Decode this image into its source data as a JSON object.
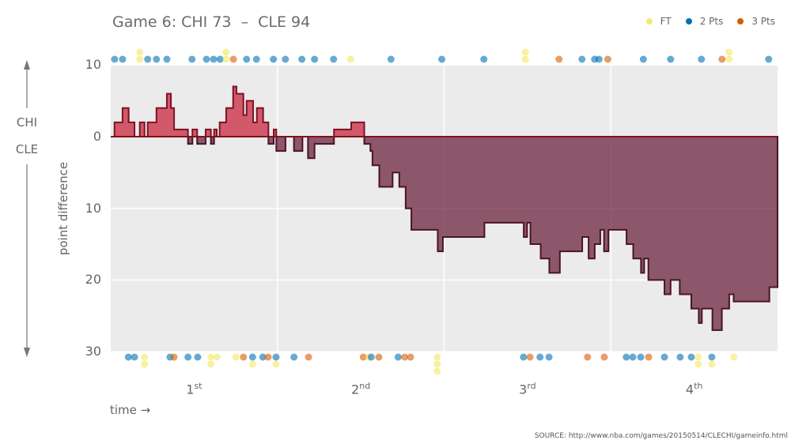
{
  "title": "Game 6: CHI 73  –  CLE 94",
  "legend": [
    {
      "label": "FT",
      "color": "#f0e442"
    },
    {
      "label": "2 Pts",
      "color": "#0072b2"
    },
    {
      "label": "3 Pts",
      "color": "#d55e00"
    }
  ],
  "side_labels": {
    "top": "CHI",
    "bottom": "CLE"
  },
  "source": "SOURCE: http://www.nba.com/games/20150514/CLECHI/gameinfo.html",
  "chart_data": {
    "type": "area",
    "title": "Game 6: CHI 73  –  CLE 94",
    "xlabel": "time →",
    "ylabel": "point difference",
    "xlim": [
      0,
      48
    ],
    "ylim": [
      -30,
      10
    ],
    "y_ticks": [
      {
        "value": 10,
        "label": "10"
      },
      {
        "value": 0,
        "label": "0"
      },
      {
        "value": -10,
        "label": "10"
      },
      {
        "value": -20,
        "label": "20"
      },
      {
        "value": -30,
        "label": "30"
      }
    ],
    "quarters": [
      {
        "num": "1",
        "sup": "st",
        "mid": 6
      },
      {
        "num": "2",
        "sup": "nd",
        "mid": 18
      },
      {
        "num": "3",
        "sup": "rd",
        "mid": 30
      },
      {
        "num": "4",
        "sup": "th",
        "mid": 42
      }
    ],
    "quarter_lines": [
      12,
      24,
      36
    ],
    "grid": true,
    "legend_position": "top-right",
    "colors": {
      "chi_fill": "#c8283f",
      "chi_stroke": "#7e1222",
      "cle_fill": "#6e2540",
      "cle_stroke": "#4a1424",
      "background": "#ebebeb"
    },
    "margin_steps": [
      [
        0,
        0
      ],
      [
        0.27,
        2
      ],
      [
        0.85,
        4
      ],
      [
        1.29,
        2
      ],
      [
        1.71,
        0
      ],
      [
        2.09,
        2
      ],
      [
        2.43,
        0
      ],
      [
        2.66,
        2
      ],
      [
        3.29,
        4
      ],
      [
        4.04,
        6
      ],
      [
        4.33,
        4
      ],
      [
        4.56,
        1
      ],
      [
        5.56,
        -1
      ],
      [
        5.88,
        1
      ],
      [
        6.22,
        -1
      ],
      [
        6.83,
        1
      ],
      [
        7.21,
        -1
      ],
      [
        7.44,
        1
      ],
      [
        7.63,
        0
      ],
      [
        7.84,
        2
      ],
      [
        8.31,
        4
      ],
      [
        8.81,
        7
      ],
      [
        9.05,
        6
      ],
      [
        9.55,
        3
      ],
      [
        9.78,
        5
      ],
      [
        10.25,
        2
      ],
      [
        10.52,
        4
      ],
      [
        10.97,
        2
      ],
      [
        11.35,
        -1
      ],
      [
        11.73,
        1
      ],
      [
        11.92,
        -2
      ],
      [
        12.58,
        0
      ],
      [
        13.19,
        -2
      ],
      [
        13.8,
        0
      ],
      [
        14.2,
        -3
      ],
      [
        14.67,
        -1
      ],
      [
        16.07,
        1
      ],
      [
        17.31,
        2
      ],
      [
        18.25,
        -1
      ],
      [
        18.69,
        -2
      ],
      [
        18.84,
        -4
      ],
      [
        19.33,
        -7
      ],
      [
        20.29,
        -5
      ],
      [
        20.77,
        -7
      ],
      [
        21.23,
        -10
      ],
      [
        21.64,
        -13
      ],
      [
        23.54,
        -16
      ],
      [
        23.91,
        -14
      ],
      [
        26.9,
        -12
      ],
      [
        29.73,
        -14
      ],
      [
        29.97,
        -12
      ],
      [
        30.21,
        -15
      ],
      [
        30.95,
        -17
      ],
      [
        31.57,
        -19
      ],
      [
        32.33,
        -16
      ],
      [
        33.94,
        -14
      ],
      [
        34.4,
        -17
      ],
      [
        34.84,
        -15
      ],
      [
        35.24,
        -13
      ],
      [
        35.51,
        -16
      ],
      [
        35.83,
        -13
      ],
      [
        37.13,
        -15
      ],
      [
        37.61,
        -17
      ],
      [
        38.17,
        -19
      ],
      [
        38.4,
        -17
      ],
      [
        38.7,
        -20
      ],
      [
        39.86,
        -22
      ],
      [
        40.3,
        -20
      ],
      [
        40.96,
        -22
      ],
      [
        41.79,
        -24
      ],
      [
        42.33,
        -26
      ],
      [
        42.55,
        -24
      ],
      [
        43.31,
        -27
      ],
      [
        43.99,
        -24
      ],
      [
        44.52,
        -22
      ],
      [
        44.84,
        -23
      ],
      [
        47.41,
        -21
      ]
    ],
    "chi_scores": [
      [
        0.28,
        [
          "2"
        ]
      ],
      [
        0.85,
        [
          "2"
        ]
      ],
      [
        2.09,
        [
          "FT",
          "FT"
        ]
      ],
      [
        2.66,
        [
          "2"
        ]
      ],
      [
        3.29,
        [
          "2"
        ]
      ],
      [
        4.04,
        [
          "2"
        ]
      ],
      [
        5.85,
        [
          "2"
        ]
      ],
      [
        6.89,
        [
          "2"
        ]
      ],
      [
        7.4,
        [
          "2"
        ]
      ],
      [
        7.87,
        [
          "2"
        ]
      ],
      [
        8.3,
        [
          "FT",
          "FT"
        ]
      ],
      [
        8.83,
        [
          "3"
        ]
      ],
      [
        9.78,
        [
          "2"
        ]
      ],
      [
        10.49,
        [
          "2"
        ]
      ],
      [
        11.71,
        [
          "2"
        ]
      ],
      [
        12.57,
        [
          "2"
        ]
      ],
      [
        13.76,
        [
          "2"
        ]
      ],
      [
        14.67,
        [
          "2"
        ]
      ],
      [
        16.04,
        [
          "2"
        ]
      ],
      [
        17.27,
        [
          "FT"
        ]
      ],
      [
        20.17,
        [
          "2"
        ]
      ],
      [
        23.83,
        [
          "2"
        ]
      ],
      [
        26.86,
        [
          "2"
        ]
      ],
      [
        29.85,
        [
          "FT",
          "FT"
        ]
      ],
      [
        32.27,
        [
          "3"
        ]
      ],
      [
        33.92,
        [
          "2"
        ]
      ],
      [
        34.83,
        [
          "2"
        ]
      ],
      [
        35.15,
        [
          "2"
        ]
      ],
      [
        35.78,
        [
          "3"
        ]
      ],
      [
        38.34,
        [
          "2"
        ]
      ],
      [
        40.3,
        [
          "2"
        ]
      ],
      [
        42.52,
        [
          "2"
        ]
      ],
      [
        44.0,
        [
          "3"
        ]
      ],
      [
        44.51,
        [
          "FT",
          "FT"
        ]
      ],
      [
        47.36,
        [
          "2"
        ]
      ]
    ],
    "cle_scores": [
      [
        1.27,
        [
          "2"
        ]
      ],
      [
        1.71,
        [
          "2"
        ]
      ],
      [
        2.43,
        [
          "FT",
          "FT"
        ]
      ],
      [
        4.27,
        [
          "2"
        ]
      ],
      [
        4.56,
        [
          "3"
        ]
      ],
      [
        5.56,
        [
          "2"
        ]
      ],
      [
        6.26,
        [
          "2"
        ]
      ],
      [
        7.21,
        [
          "FT",
          "FT"
        ]
      ],
      [
        7.65,
        [
          "FT"
        ]
      ],
      [
        9.01,
        [
          "FT"
        ]
      ],
      [
        9.55,
        [
          "3"
        ]
      ],
      [
        10.21,
        [
          "2",
          "FT"
        ]
      ],
      [
        10.95,
        [
          "2"
        ]
      ],
      [
        11.33,
        [
          "3"
        ]
      ],
      [
        11.9,
        [
          "2",
          "FT"
        ]
      ],
      [
        13.19,
        [
          "2"
        ]
      ],
      [
        14.24,
        [
          "3"
        ]
      ],
      [
        18.18,
        [
          "3"
        ]
      ],
      [
        18.56,
        [
          "FT"
        ]
      ],
      [
        18.75,
        [
          "2"
        ]
      ],
      [
        19.3,
        [
          "3"
        ]
      ],
      [
        20.69,
        [
          "2"
        ]
      ],
      [
        21.16,
        [
          "3"
        ]
      ],
      [
        21.58,
        [
          "3"
        ]
      ],
      [
        23.5,
        [
          "FT",
          "FT",
          "FT"
        ]
      ],
      [
        29.71,
        [
          "2"
        ]
      ],
      [
        30.18,
        [
          "3"
        ]
      ],
      [
        30.9,
        [
          "2"
        ]
      ],
      [
        31.55,
        [
          "2"
        ]
      ],
      [
        34.32,
        [
          "3"
        ]
      ],
      [
        35.53,
        [
          "3"
        ]
      ],
      [
        37.11,
        [
          "2"
        ]
      ],
      [
        37.58,
        [
          "2"
        ]
      ],
      [
        38.15,
        [
          "2"
        ]
      ],
      [
        38.72,
        [
          "3"
        ]
      ],
      [
        39.86,
        [
          "2"
        ]
      ],
      [
        40.99,
        [
          "2"
        ]
      ],
      [
        41.79,
        [
          "2"
        ]
      ],
      [
        42.29,
        [
          "FT",
          "FT"
        ]
      ],
      [
        43.27,
        [
          "2",
          "FT"
        ]
      ],
      [
        44.85,
        [
          "FT"
        ]
      ]
    ]
  }
}
